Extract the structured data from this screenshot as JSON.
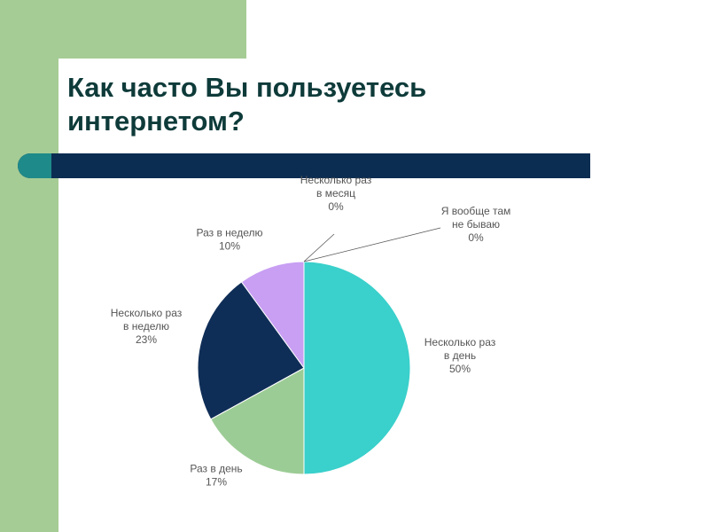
{
  "slide": {
    "title_line1": "Как часто Вы пользуетесь",
    "title_line2": "интернетом?"
  },
  "colors": {
    "background_green": "#a6cc95",
    "title_text": "#0e3b3a",
    "bar": "#0c2d52",
    "bar_accent": "#1f8a8a"
  },
  "chart_data": {
    "type": "pie",
    "slices": [
      {
        "line1": "Несколько раз",
        "line2": "в день",
        "value": 50,
        "pct_label": "50%",
        "color": "#3ad0cb"
      },
      {
        "line1": "Раз в день",
        "line2": "",
        "value": 17,
        "pct_label": "17%",
        "color": "#9ccc95"
      },
      {
        "line1": "Несколько раз",
        "line2": "в неделю",
        "value": 23,
        "pct_label": "23%",
        "color": "#0f2e57"
      },
      {
        "line1": "Раз в неделю",
        "line2": "",
        "value": 10,
        "pct_label": "10%",
        "color": "#c89ff3"
      },
      {
        "line1": "Несколько раз",
        "line2": "в месяц",
        "value": 0,
        "pct_label": "0%",
        "color": "#7a7a7a"
      },
      {
        "line1": "Я вообще там",
        "line2": "не бываю",
        "value": 0,
        "pct_label": "0%",
        "color": "#7a7a7a"
      }
    ]
  }
}
